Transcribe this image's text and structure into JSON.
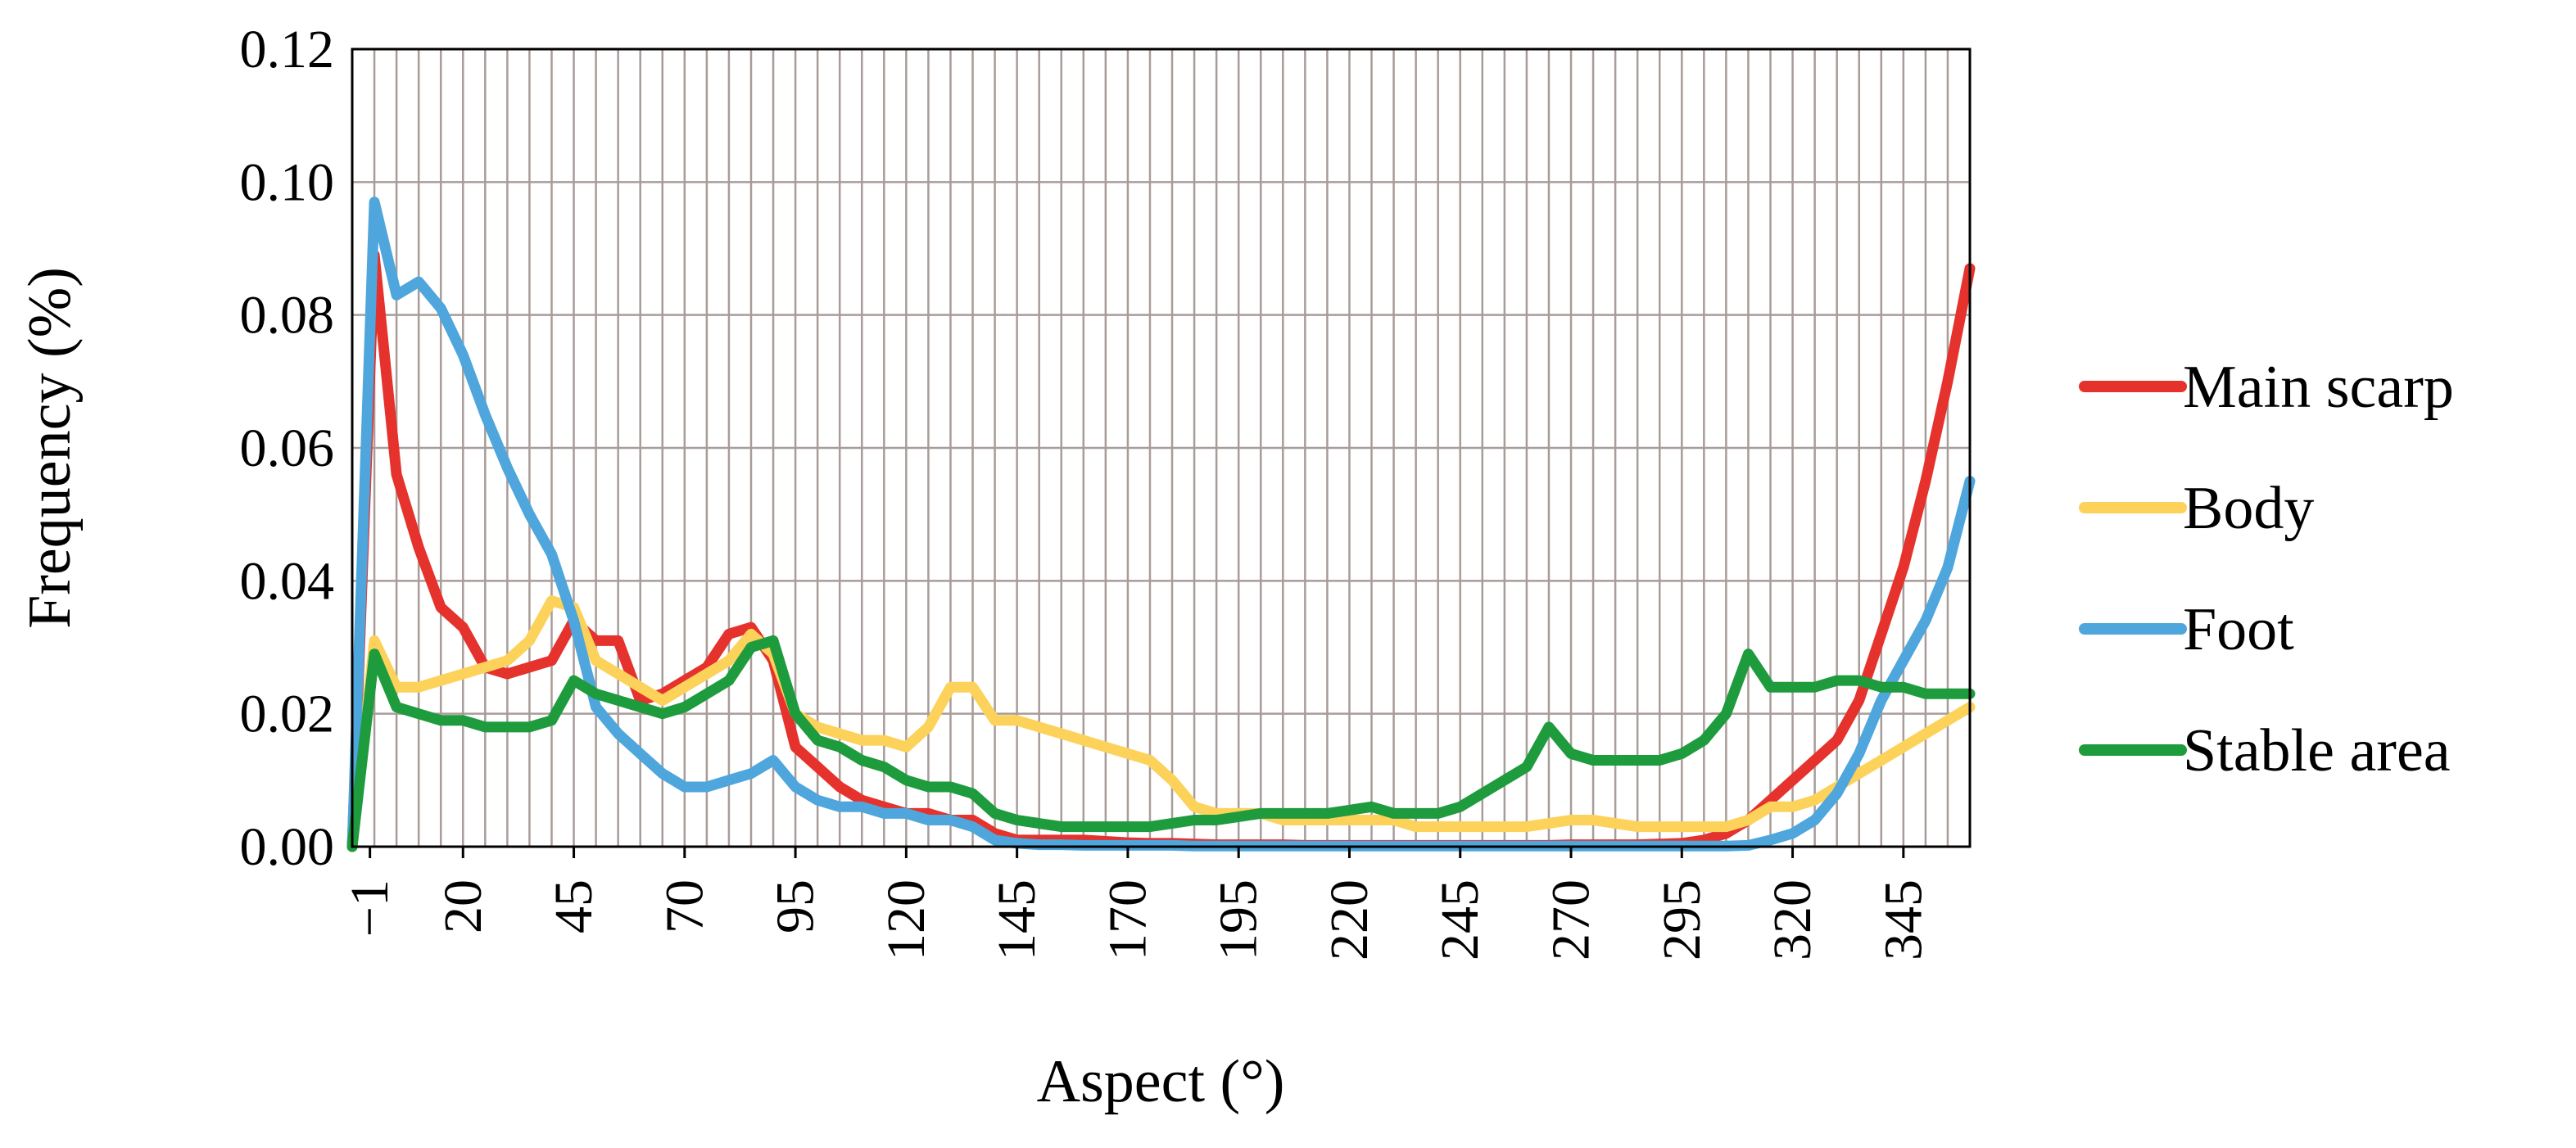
{
  "chart_data": {
    "type": "line",
    "title": "",
    "xlabel": "Aspect (°)",
    "ylabel": "Frequency (%)",
    "xlim": [
      -5,
      360
    ],
    "ylim": [
      0,
      0.12
    ],
    "grid": true,
    "legend_position": "right",
    "x_ticks": [
      -1,
      20,
      45,
      70,
      95,
      120,
      145,
      170,
      195,
      220,
      245,
      270,
      295,
      320,
      345
    ],
    "x_tick_labels": [
      "−1",
      "20",
      "45",
      "70",
      "95",
      "120",
      "145",
      "170",
      "195",
      "220",
      "245",
      "270",
      "295",
      "320",
      "345"
    ],
    "y_ticks": [
      0,
      0.02,
      0.04,
      0.06,
      0.08,
      0.1,
      0.12
    ],
    "y_tick_labels": [
      "0.00",
      "0.02",
      "0.04",
      "0.06",
      "0.08",
      "0.10",
      "0.12"
    ],
    "x": [
      -5,
      0,
      5,
      10,
      15,
      20,
      25,
      30,
      35,
      40,
      45,
      50,
      55,
      60,
      65,
      70,
      75,
      80,
      85,
      90,
      95,
      100,
      105,
      110,
      115,
      120,
      125,
      130,
      135,
      140,
      145,
      150,
      155,
      160,
      165,
      170,
      175,
      180,
      185,
      190,
      195,
      200,
      205,
      210,
      215,
      220,
      225,
      230,
      235,
      240,
      245,
      250,
      255,
      260,
      265,
      270,
      275,
      280,
      285,
      290,
      295,
      300,
      305,
      310,
      315,
      320,
      325,
      330,
      335,
      340,
      345,
      350,
      355,
      360
    ],
    "series": [
      {
        "name": "Main scarp",
        "color": "#e5322d",
        "values": [
          0,
          0.089,
          0.056,
          0.045,
          0.036,
          0.033,
          0.027,
          0.026,
          0.027,
          0.028,
          0.034,
          0.031,
          0.031,
          0.022,
          0.023,
          0.025,
          0.027,
          0.032,
          0.033,
          0.028,
          0.015,
          0.012,
          0.009,
          0.007,
          0.006,
          0.005,
          0.005,
          0.004,
          0.004,
          0.002,
          0.001,
          0.001,
          0.001,
          0.001,
          0.0008,
          0.0006,
          0.0005,
          0.0005,
          0.0004,
          0.0003,
          0.0003,
          0.0003,
          0.0003,
          0.0002,
          0.0002,
          0.0002,
          0.0002,
          0.0002,
          0.0002,
          0.0002,
          0.0002,
          0.0002,
          0.0002,
          0.0002,
          0.0002,
          0.0003,
          0.0003,
          0.0003,
          0.0003,
          0.0004,
          0.0005,
          0.001,
          0.002,
          0.004,
          0.007,
          0.01,
          0.013,
          0.016,
          0.022,
          0.032,
          0.042,
          0.055,
          0.07,
          0.087
        ]
      },
      {
        "name": "Body",
        "color": "#fcd25a",
        "values": [
          0,
          0.031,
          0.024,
          0.024,
          0.025,
          0.026,
          0.027,
          0.028,
          0.031,
          0.037,
          0.036,
          0.028,
          0.026,
          0.024,
          0.022,
          0.024,
          0.026,
          0.028,
          0.032,
          0.029,
          0.02,
          0.018,
          0.017,
          0.016,
          0.016,
          0.015,
          0.018,
          0.024,
          0.024,
          0.019,
          0.019,
          0.018,
          0.017,
          0.016,
          0.015,
          0.014,
          0.013,
          0.01,
          0.006,
          0.005,
          0.005,
          0.005,
          0.004,
          0.004,
          0.004,
          0.004,
          0.004,
          0.004,
          0.003,
          0.003,
          0.003,
          0.003,
          0.003,
          0.003,
          0.0035,
          0.004,
          0.004,
          0.0035,
          0.003,
          0.003,
          0.003,
          0.003,
          0.003,
          0.004,
          0.006,
          0.006,
          0.007,
          0.009,
          0.011,
          0.013,
          0.015,
          0.017,
          0.019,
          0.021
        ]
      },
      {
        "name": "Foot",
        "color": "#4ea6dc",
        "values": [
          0,
          0.097,
          0.083,
          0.085,
          0.081,
          0.074,
          0.065,
          0.057,
          0.05,
          0.044,
          0.034,
          0.021,
          0.017,
          0.014,
          0.011,
          0.009,
          0.009,
          0.01,
          0.011,
          0.013,
          0.009,
          0.007,
          0.006,
          0.006,
          0.005,
          0.005,
          0.004,
          0.004,
          0.003,
          0.001,
          0.0005,
          0.0003,
          0.0003,
          0.0002,
          0.0002,
          0.0002,
          0.0002,
          0.0002,
          0.0001,
          0.0001,
          0.0001,
          0.0001,
          0.0001,
          0.0001,
          0.0001,
          0.0001,
          0.0001,
          0.0001,
          0.0001,
          0.0001,
          0.0001,
          0.0001,
          0.0001,
          0.0001,
          0.0001,
          0.0001,
          0.0001,
          0.0001,
          0.0001,
          0.0001,
          0.0001,
          0.0001,
          0.0001,
          0.0002,
          0.001,
          0.002,
          0.004,
          0.008,
          0.014,
          0.022,
          0.028,
          0.034,
          0.042,
          0.055
        ]
      },
      {
        "name": "Stable area",
        "color": "#1e9b3c",
        "values": [
          0,
          0.029,
          0.021,
          0.02,
          0.019,
          0.019,
          0.018,
          0.018,
          0.018,
          0.019,
          0.025,
          0.023,
          0.022,
          0.021,
          0.02,
          0.021,
          0.023,
          0.025,
          0.03,
          0.031,
          0.02,
          0.016,
          0.015,
          0.013,
          0.012,
          0.01,
          0.009,
          0.009,
          0.008,
          0.005,
          0.004,
          0.0035,
          0.003,
          0.003,
          0.003,
          0.003,
          0.003,
          0.0035,
          0.004,
          0.004,
          0.0045,
          0.005,
          0.005,
          0.005,
          0.005,
          0.0055,
          0.006,
          0.005,
          0.005,
          0.005,
          0.006,
          0.008,
          0.01,
          0.012,
          0.018,
          0.014,
          0.013,
          0.013,
          0.013,
          0.013,
          0.014,
          0.016,
          0.02,
          0.029,
          0.024,
          0.024,
          0.024,
          0.025,
          0.025,
          0.024,
          0.024,
          0.023,
          0.023,
          0.023
        ]
      }
    ]
  }
}
